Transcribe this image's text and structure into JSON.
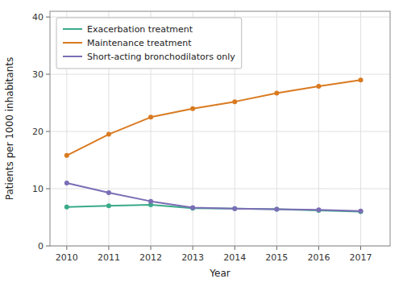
{
  "chart_data": {
    "type": "line",
    "xlabel": "Year",
    "ylabel": "Patients per 1000 inhabitants",
    "x": [
      2010,
      2011,
      2012,
      2013,
      2014,
      2015,
      2016,
      2017
    ],
    "series": [
      {
        "name": "Exacerbation treatment",
        "color": "#3aaa8a",
        "values": [
          6.8,
          7.0,
          7.2,
          6.6,
          6.5,
          6.4,
          6.2,
          6.0
        ]
      },
      {
        "name": "Maintenance treatment",
        "color": "#d97a20",
        "values": [
          15.8,
          19.5,
          22.5,
          24.0,
          25.2,
          26.7,
          27.9,
          29.0
        ]
      },
      {
        "name": "Short-acting bronchodilators only",
        "color": "#7b6db5",
        "values": [
          11.0,
          9.3,
          7.8,
          6.7,
          6.5,
          6.4,
          6.3,
          6.1
        ]
      }
    ],
    "xlim": [
      2009.6,
      2017.7
    ],
    "xticks": [
      2010,
      2011,
      2012,
      2013,
      2014,
      2015,
      2016,
      2017
    ],
    "ylim": [
      0,
      41
    ],
    "yticks": [
      0,
      10,
      20,
      30,
      40
    ],
    "grid": true,
    "legend": "upper left",
    "marker": "circle"
  }
}
